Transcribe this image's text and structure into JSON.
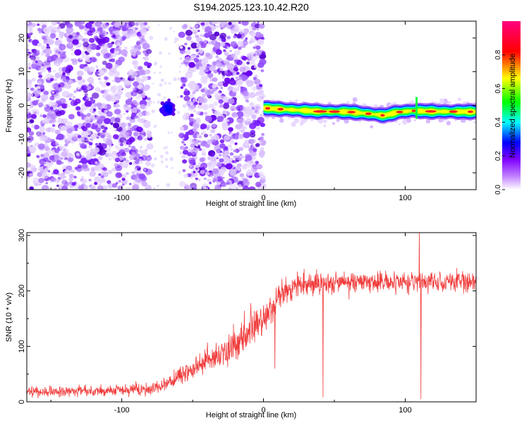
{
  "title": "S194.2025.123.10.42.R20",
  "chart_data": [
    {
      "type": "heatmap",
      "xlabel": "Height of straight line (km)",
      "ylabel": "Frequency (Hz)",
      "xlim": [
        -167,
        150
      ],
      "ylim": [
        -25,
        25
      ],
      "x_ticks": [
        -100,
        0,
        100
      ],
      "y_ticks": [
        -20,
        -10,
        0,
        10,
        20
      ],
      "colorbar": {
        "label": "Normalized spectral amplitude",
        "range": [
          0,
          1
        ],
        "ticks": [
          "0.0",
          "0.2",
          "0.4",
          "0.6",
          "0.8"
        ],
        "colormap": [
          "#ffffff",
          "#8000ff",
          "#0000ff",
          "#00ffff",
          "#00ff00",
          "#ffff00",
          "#ff0000",
          "#ff0080"
        ]
      },
      "regions": [
        {
          "name": "noise",
          "x_range": [
            -167,
            -80
          ],
          "y_range": [
            -25,
            25
          ],
          "level": 0.15
        },
        {
          "name": "noise",
          "x_range": [
            -58,
            0
          ],
          "y_range": [
            -25,
            25
          ],
          "level": 0.15
        },
        {
          "name": "gap",
          "x_range": [
            -80,
            -58
          ],
          "y_range": [
            -25,
            25
          ],
          "level": 0.02
        },
        {
          "name": "blob",
          "x": -68,
          "y": -1,
          "level": 0.35
        },
        {
          "name": "signal-band",
          "x_range": [
            0,
            150
          ],
          "frequency_track": [
            [
              0,
              -0.8
            ],
            [
              20,
              -1.3
            ],
            [
              40,
              -1.8
            ],
            [
              60,
              -1.9
            ],
            [
              75,
              -2.5
            ],
            [
              85,
              -3.0
            ],
            [
              95,
              -2.0
            ],
            [
              105,
              -1.6
            ],
            [
              120,
              -1.8
            ],
            [
              150,
              -1.9
            ]
          ],
          "level": 0.9
        }
      ]
    },
    {
      "type": "line",
      "xlabel": "Height of straight line (km)",
      "ylabel": "SNR (10 * v/v)",
      "xlim": [
        -167,
        150
      ],
      "ylim": [
        0,
        305
      ],
      "x_ticks": [
        -100,
        0,
        100
      ],
      "y_ticks": [
        0,
        100,
        200,
        300
      ],
      "series": [
        {
          "color": "#f03c3c",
          "envelope": [
            [
              -167,
              18
            ],
            [
              -140,
              19
            ],
            [
              -110,
              20
            ],
            [
              -85,
              22
            ],
            [
              -70,
              30
            ],
            [
              -60,
              45
            ],
            [
              -45,
              65
            ],
            [
              -30,
              85
            ],
            [
              -15,
              110
            ],
            [
              -5,
              140
            ],
            [
              5,
              165
            ],
            [
              12,
              190
            ],
            [
              20,
              205
            ],
            [
              30,
              213
            ],
            [
              50,
              215
            ],
            [
              70,
              216
            ],
            [
              90,
              215
            ],
            [
              110,
              216
            ],
            [
              130,
              217
            ],
            [
              150,
              216
            ]
          ],
          "noise": [
            [
              -167,
              9
            ],
            [
              -70,
              12
            ],
            [
              -30,
              28
            ],
            [
              0,
              32
            ],
            [
              20,
              22
            ],
            [
              150,
              17
            ]
          ],
          "spikes": [
            [
              42,
              8
            ],
            [
              110,
              305
            ],
            [
              111,
              5
            ],
            [
              -9,
              178
            ],
            [
              8,
              60
            ]
          ]
        }
      ]
    }
  ]
}
